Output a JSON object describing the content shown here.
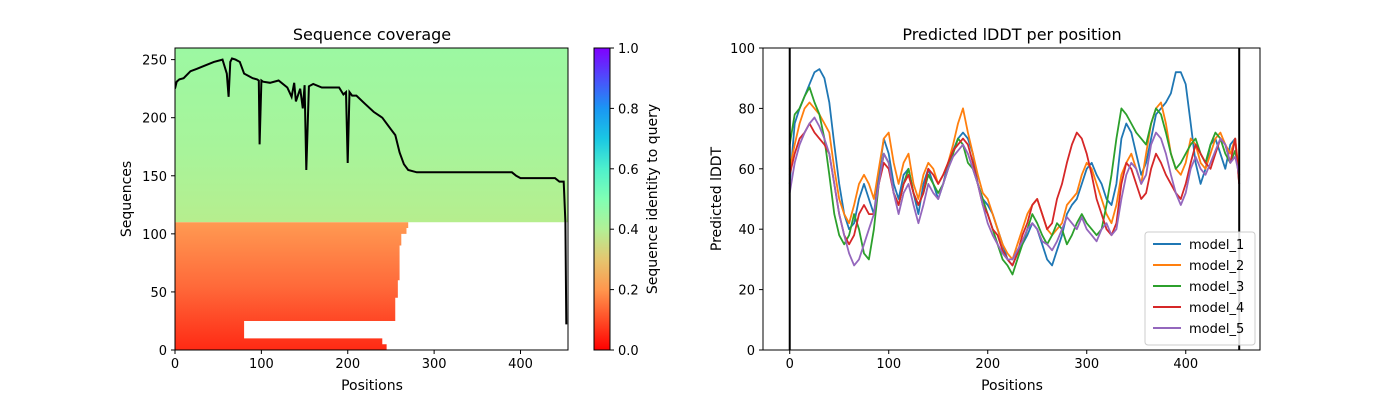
{
  "chart_data": [
    {
      "type": "heatmap",
      "title": "Sequence coverage",
      "xlabel": "Positions",
      "ylabel": "Sequences",
      "xlim": [
        0,
        455
      ],
      "ylim": [
        0,
        260
      ],
      "xticks": [
        0,
        100,
        200,
        300,
        400
      ],
      "yticks": [
        0,
        50,
        100,
        150,
        200,
        250
      ],
      "colorbar": {
        "label": "Sequence identity to query",
        "range": [
          0.0,
          1.0
        ],
        "ticks": [
          "0.0",
          "0.2",
          "0.4",
          "0.6",
          "0.8",
          "1.0"
        ],
        "colormap": "rainbow_r"
      },
      "blocks": [
        {
          "seq_range": [
            0,
            110
          ],
          "identity_low": 0.05,
          "identity_high": 0.18,
          "description": "low-identity sequences, partial coverage"
        },
        {
          "seq_range": [
            110,
            260
          ],
          "identity_low": 0.35,
          "identity_high": 0.45,
          "description": "high-identity sequences, full coverage"
        }
      ],
      "lower_block_row_end": [
        [
          0,
          245
        ],
        [
          5,
          240
        ],
        [
          10,
          80
        ],
        [
          25,
          255
        ],
        [
          45,
          258
        ],
        [
          60,
          260
        ],
        [
          75,
          260
        ],
        [
          90,
          262
        ],
        [
          100,
          268
        ],
        [
          105,
          270
        ],
        [
          110,
          272
        ]
      ],
      "coverage_line": {
        "x": [
          0,
          2,
          5,
          10,
          18,
          25,
          35,
          45,
          55,
          60,
          62,
          64,
          66,
          70,
          75,
          80,
          85,
          90,
          95,
          97,
          98,
          100,
          102,
          110,
          120,
          130,
          135,
          138,
          140,
          145,
          148,
          150,
          152,
          155,
          160,
          170,
          180,
          190,
          195,
          198,
          200,
          202,
          205,
          210,
          220,
          230,
          240,
          250,
          255,
          260,
          265,
          270,
          280,
          300,
          350,
          390,
          395,
          400,
          420,
          440,
          445,
          450,
          452,
          453
        ],
        "y": [
          225,
          231,
          233,
          234,
          240,
          242,
          245,
          248,
          250,
          238,
          218,
          248,
          251,
          250,
          248,
          238,
          236,
          234,
          233,
          232,
          177,
          232,
          231,
          230,
          232,
          226,
          218,
          230,
          214,
          225,
          208,
          228,
          155,
          227,
          229,
          226,
          226,
          226,
          220,
          222,
          161,
          222,
          219,
          219,
          212,
          205,
          200,
          190,
          185,
          170,
          160,
          155,
          153,
          153,
          153,
          153,
          150,
          148,
          148,
          148,
          145,
          145,
          110,
          22
        ]
      }
    },
    {
      "type": "line",
      "title": "Predicted lDDT per position",
      "xlabel": "Positions",
      "ylabel": "Predicted lDDT",
      "xlim": [
        -27,
        475
      ],
      "ylim": [
        0,
        100
      ],
      "xticks": [
        0,
        100,
        200,
        300,
        400
      ],
      "yticks": [
        0,
        20,
        40,
        60,
        80,
        100
      ],
      "vlines": [
        0,
        454
      ],
      "legend_position": "lower-right",
      "x": [
        0,
        5,
        10,
        15,
        20,
        25,
        30,
        35,
        40,
        45,
        50,
        55,
        60,
        65,
        70,
        75,
        80,
        85,
        90,
        95,
        100,
        105,
        110,
        115,
        120,
        125,
        130,
        135,
        140,
        145,
        150,
        155,
        160,
        165,
        170,
        175,
        180,
        185,
        190,
        195,
        200,
        205,
        210,
        215,
        220,
        225,
        230,
        235,
        240,
        245,
        250,
        255,
        260,
        265,
        270,
        275,
        280,
        285,
        290,
        295,
        300,
        305,
        310,
        315,
        320,
        325,
        330,
        335,
        340,
        345,
        350,
        355,
        360,
        365,
        370,
        375,
        380,
        385,
        390,
        395,
        400,
        405,
        410,
        415,
        420,
        425,
        430,
        435,
        440,
        445,
        450,
        454
      ],
      "series": [
        {
          "name": "model_1",
          "color": "#1f77b4",
          "values": [
            55,
            75,
            80,
            84,
            88,
            92,
            93,
            90,
            82,
            68,
            55,
            45,
            40,
            42,
            50,
            55,
            50,
            45,
            58,
            70,
            65,
            55,
            50,
            58,
            60,
            52,
            45,
            55,
            60,
            55,
            50,
            55,
            62,
            66,
            70,
            72,
            70,
            65,
            55,
            50,
            48,
            45,
            40,
            35,
            30,
            28,
            32,
            35,
            38,
            42,
            40,
            35,
            30,
            28,
            33,
            38,
            45,
            48,
            50,
            55,
            60,
            62,
            58,
            55,
            50,
            48,
            55,
            70,
            75,
            72,
            65,
            58,
            62,
            70,
            78,
            80,
            82,
            85,
            92,
            92,
            88,
            75,
            62,
            55,
            60,
            68,
            70,
            65,
            60,
            68,
            70,
            55
          ]
        },
        {
          "name": "model_2",
          "color": "#ff7f0e",
          "values": [
            60,
            68,
            75,
            80,
            82,
            80,
            78,
            75,
            72,
            60,
            50,
            45,
            42,
            48,
            55,
            58,
            55,
            50,
            60,
            70,
            72,
            62,
            55,
            62,
            65,
            55,
            50,
            58,
            62,
            60,
            55,
            58,
            62,
            68,
            75,
            80,
            72,
            65,
            58,
            52,
            50,
            45,
            40,
            35,
            32,
            30,
            35,
            40,
            45,
            48,
            50,
            45,
            40,
            38,
            40,
            42,
            48,
            50,
            52,
            58,
            62,
            60,
            55,
            50,
            45,
            42,
            48,
            58,
            62,
            65,
            60,
            55,
            65,
            75,
            80,
            82,
            75,
            65,
            60,
            58,
            62,
            70,
            68,
            62,
            60,
            65,
            70,
            72,
            68,
            65,
            70,
            58
          ]
        },
        {
          "name": "model_3",
          "color": "#2ca02c",
          "values": [
            68,
            78,
            80,
            84,
            87,
            82,
            78,
            70,
            58,
            45,
            38,
            35,
            38,
            45,
            40,
            32,
            30,
            40,
            55,
            65,
            62,
            52,
            48,
            55,
            60,
            52,
            48,
            52,
            58,
            55,
            52,
            55,
            60,
            65,
            70,
            68,
            62,
            60,
            55,
            50,
            45,
            40,
            35,
            30,
            28,
            25,
            30,
            35,
            40,
            45,
            42,
            38,
            35,
            38,
            42,
            40,
            35,
            38,
            42,
            45,
            42,
            40,
            38,
            40,
            48,
            58,
            70,
            80,
            78,
            75,
            72,
            70,
            68,
            75,
            80,
            78,
            72,
            65,
            60,
            62,
            65,
            68,
            70,
            65,
            62,
            68,
            72,
            70,
            65,
            62,
            66,
            58
          ]
        },
        {
          "name": "model_4",
          "color": "#d62728",
          "values": [
            58,
            65,
            70,
            72,
            75,
            72,
            70,
            68,
            65,
            55,
            45,
            38,
            35,
            38,
            45,
            48,
            45,
            45,
            55,
            62,
            60,
            52,
            48,
            55,
            58,
            52,
            48,
            52,
            60,
            58,
            55,
            58,
            62,
            66,
            68,
            70,
            68,
            62,
            55,
            48,
            45,
            40,
            38,
            33,
            30,
            28,
            32,
            38,
            42,
            48,
            50,
            45,
            40,
            42,
            50,
            55,
            62,
            68,
            72,
            70,
            65,
            58,
            50,
            45,
            40,
            38,
            42,
            55,
            62,
            60,
            55,
            50,
            52,
            60,
            65,
            62,
            58,
            55,
            52,
            50,
            55,
            62,
            68,
            65,
            62,
            60,
            65,
            70,
            68,
            62,
            70,
            55
          ]
        },
        {
          "name": "model_5",
          "color": "#9467bd",
          "values": [
            52,
            62,
            68,
            72,
            75,
            77,
            74,
            70,
            65,
            55,
            45,
            38,
            32,
            28,
            30,
            35,
            40,
            45,
            55,
            65,
            62,
            52,
            45,
            52,
            55,
            48,
            42,
            48,
            55,
            52,
            50,
            55,
            60,
            64,
            66,
            68,
            65,
            60,
            55,
            48,
            42,
            38,
            35,
            32,
            30,
            30,
            33,
            36,
            40,
            42,
            40,
            36,
            35,
            33,
            36,
            40,
            44,
            42,
            40,
            44,
            40,
            38,
            36,
            40,
            42,
            38,
            40,
            50,
            58,
            62,
            60,
            55,
            58,
            68,
            72,
            70,
            65,
            58,
            52,
            48,
            52,
            60,
            64,
            60,
            58,
            62,
            66,
            70,
            68,
            62,
            64,
            58
          ]
        }
      ]
    }
  ]
}
